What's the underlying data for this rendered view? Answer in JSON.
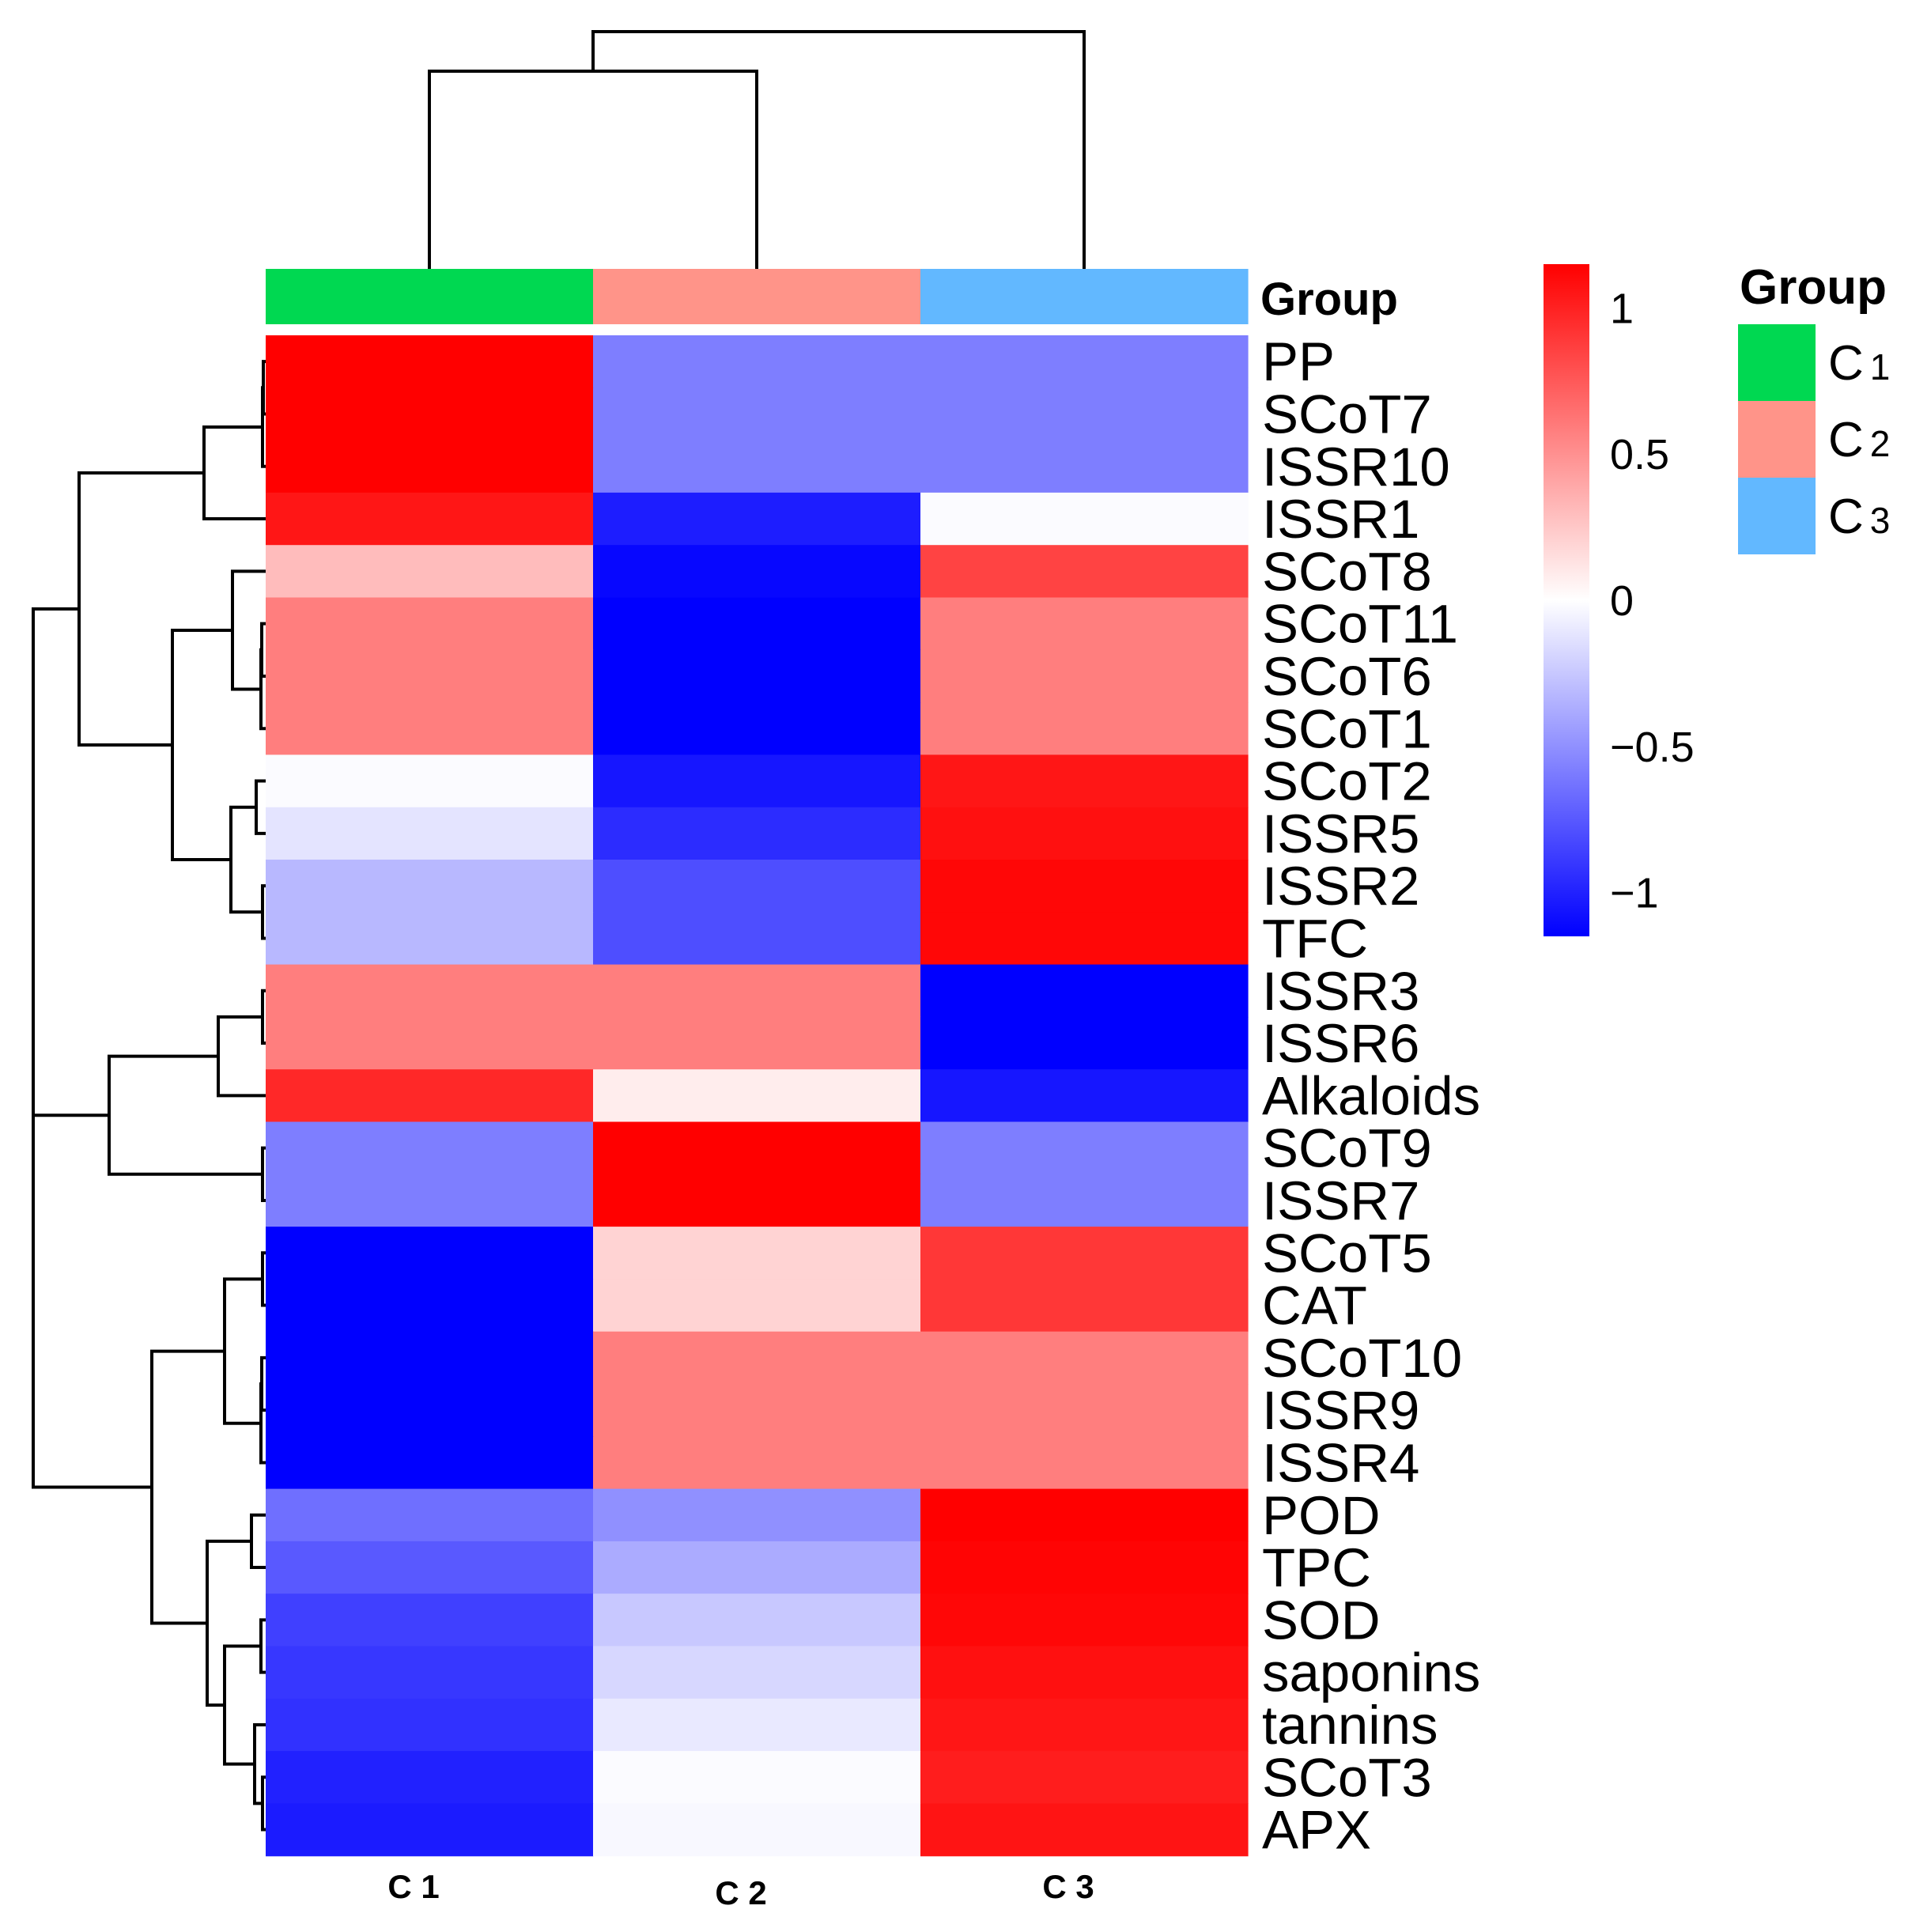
{
  "chart_data": {
    "type": "heatmap",
    "columns": [
      "C 1",
      "C 2",
      "C 3"
    ],
    "rows": [
      "PP",
      "SCoT7",
      "ISSR10",
      "ISSR1",
      "SCoT8",
      "SCoT11",
      "SCoT6",
      "SCoT1",
      "SCoT2",
      "ISSR5",
      "ISSR2",
      "TFC",
      "ISSR3",
      "ISSR6",
      "Alkaloids",
      "SCoT9",
      "ISSR7",
      "SCoT5",
      "CAT",
      "SCoT10",
      "ISSR9",
      "ISSR4",
      "POD",
      "TPC",
      "SOD",
      "saponins",
      "tannins",
      "SCoT3",
      "APX"
    ],
    "values": [
      [
        1.15,
        -0.58,
        -0.58
      ],
      [
        1.15,
        -0.58,
        -0.58
      ],
      [
        1.15,
        -0.58,
        -0.58
      ],
      [
        1.05,
        -1.02,
        -0.02
      ],
      [
        0.3,
        -1.12,
        0.85
      ],
      [
        0.58,
        -1.15,
        0.58
      ],
      [
        0.58,
        -1.15,
        0.58
      ],
      [
        0.58,
        -1.15,
        0.58
      ],
      [
        -0.02,
        -1.05,
        1.05
      ],
      [
        -0.12,
        -0.95,
        1.08
      ],
      [
        -0.32,
        -0.8,
        1.12
      ],
      [
        -0.32,
        -0.8,
        1.12
      ],
      [
        0.58,
        0.58,
        -1.15
      ],
      [
        0.58,
        0.58,
        -1.15
      ],
      [
        0.97,
        0.08,
        -1.05
      ],
      [
        -0.58,
        1.15,
        -0.58
      ],
      [
        -0.58,
        1.15,
        -0.58
      ],
      [
        -1.15,
        0.2,
        0.9
      ],
      [
        -1.15,
        0.2,
        0.9
      ],
      [
        -1.15,
        0.58,
        0.58
      ],
      [
        -1.15,
        0.58,
        0.58
      ],
      [
        -1.15,
        0.58,
        0.58
      ],
      [
        -0.65,
        -0.5,
        1.15
      ],
      [
        -0.75,
        -0.38,
        1.13
      ],
      [
        -0.86,
        -0.25,
        1.12
      ],
      [
        -0.9,
        -0.18,
        1.08
      ],
      [
        -0.93,
        -0.1,
        1.05
      ],
      [
        -1.0,
        -0.02,
        1.02
      ],
      [
        -1.03,
        -0.03,
        1.06
      ]
    ],
    "annotation_title": "Group",
    "groups": [
      {
        "name": "C",
        "num": "1",
        "color": "#00D851"
      },
      {
        "name": "C",
        "num": "2",
        "color": "#FF9489"
      },
      {
        "name": "C",
        "num": "3",
        "color": "#62B8FF"
      }
    ],
    "colorbar": {
      "min": -1.15,
      "max": 1.15,
      "low_color": "#0000FF",
      "mid_color": "#FFFFFF",
      "high_color": "#FF0000",
      "ticks": [
        {
          "value": 1,
          "label": "1"
        },
        {
          "value": 0.5,
          "label": "0.5"
        },
        {
          "value": 0,
          "label": "0"
        },
        {
          "value": -0.5,
          "label": "−0.5"
        },
        {
          "value": -1,
          "label": "−1"
        }
      ]
    },
    "legend": {
      "title": "Group",
      "position": "right"
    },
    "column_dendrogram": "((C 1, C 2), C 3)",
    "row_dendrogram": "((((PP,SCoT7,ISSR10),ISSR1),((SCoT8,(SCoT11,SCoT6,SCoT1)),((SCoT2,ISSR5),(ISSR2,TFC)))),(((ISSR3,ISSR6),Alkaloids),(SCoT9,ISSR7)),(((SCoT5,CAT),(SCoT10,ISSR9,ISSR4)),((POD,TPC),((SOD,saponins),(tannins,(SCoT3,APX))))))"
  }
}
